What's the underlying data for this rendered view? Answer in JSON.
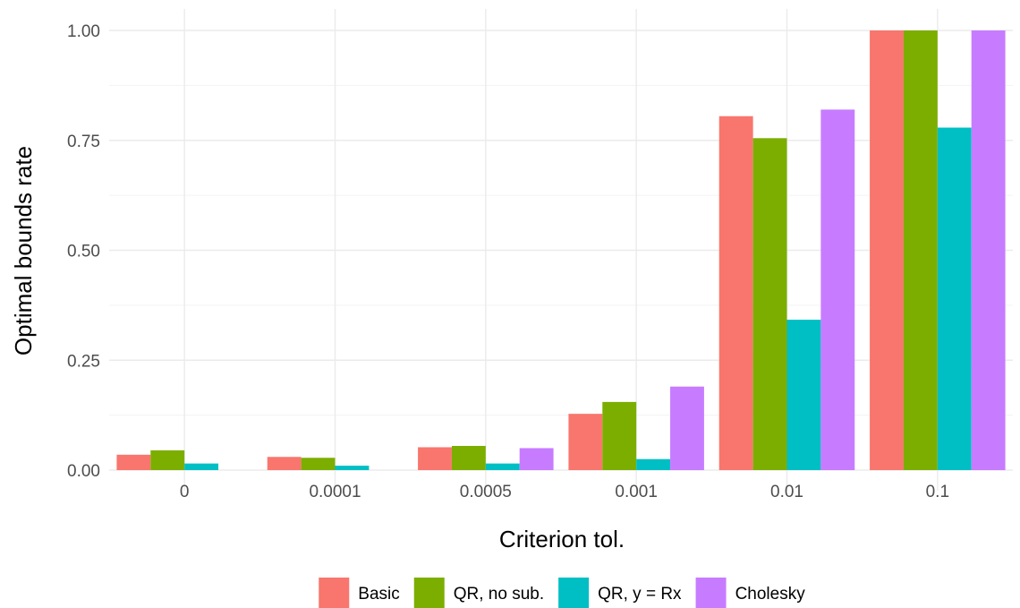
{
  "chart_data": {
    "type": "bar",
    "title": "",
    "xlabel": "Criterion tol.",
    "ylabel": "Optimal bounds rate",
    "categories": [
      "0",
      "0.0001",
      "0.0005",
      "0.001",
      "0.01",
      "0.1"
    ],
    "ylim": [
      0,
      1
    ],
    "yticks": [
      0,
      0.25,
      0.5,
      0.75,
      1
    ],
    "ytick_labels": [
      "0.00",
      "0.25",
      "0.50",
      "0.75",
      "1.00"
    ],
    "grid": true,
    "legend_position": "bottom",
    "series": [
      {
        "name": "Basic",
        "color": "#F8766D",
        "values": [
          0.035,
          0.03,
          0.052,
          0.128,
          0.805,
          1.0
        ]
      },
      {
        "name": "QR, no sub.",
        "color": "#7CAE00",
        "values": [
          0.045,
          0.028,
          0.055,
          0.155,
          0.755,
          1.0
        ]
      },
      {
        "name": "QR, y = Rx",
        "color": "#00BFC4",
        "values": [
          0.015,
          0.01,
          0.015,
          0.025,
          0.342,
          0.779
        ]
      },
      {
        "name": "Cholesky",
        "color": "#C77CFF",
        "values": [
          0.0,
          0.0,
          0.05,
          0.19,
          0.82,
          1.0
        ]
      }
    ]
  }
}
